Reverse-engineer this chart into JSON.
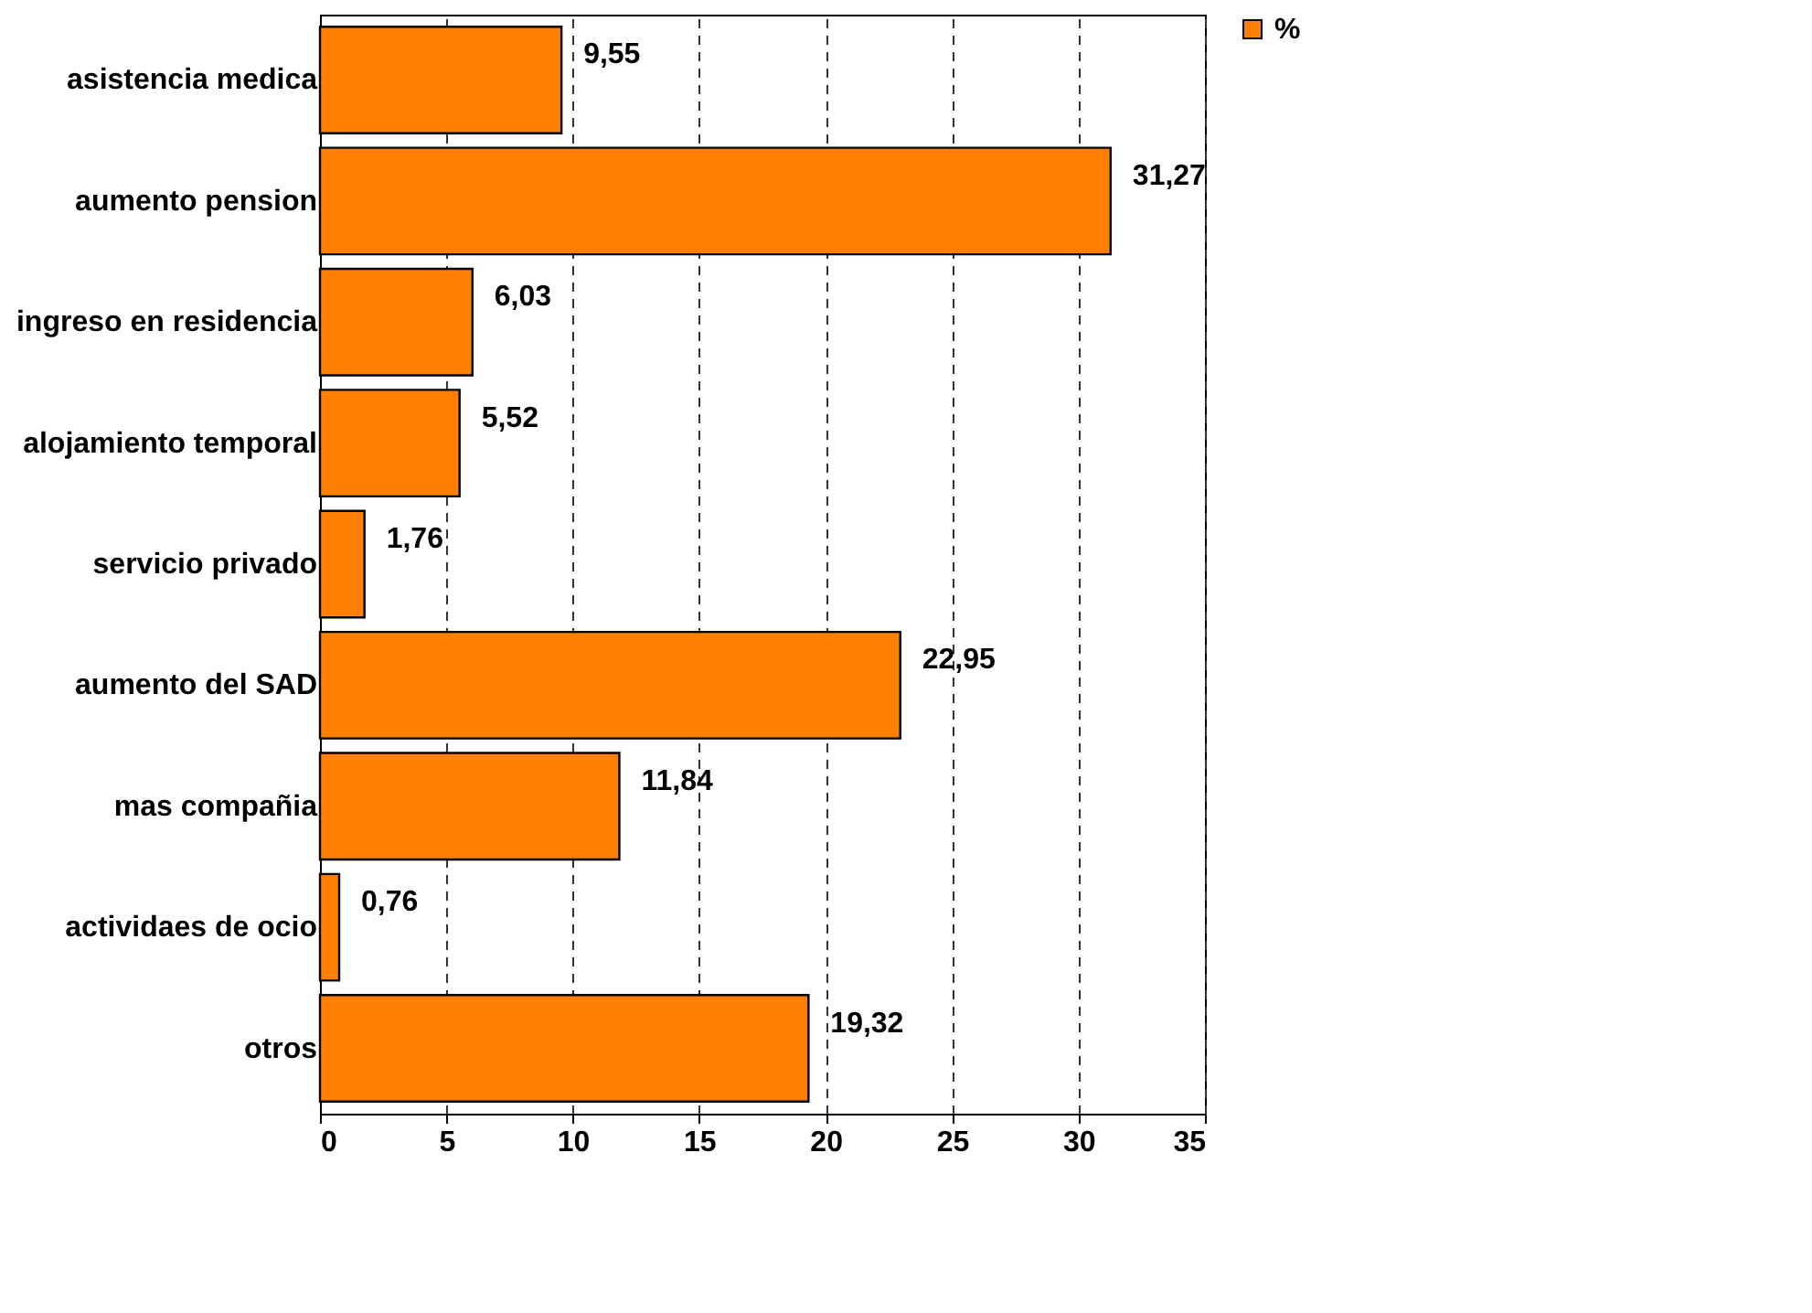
{
  "chart_data": {
    "type": "bar",
    "orientation": "horizontal",
    "categories": [
      "asistencia medica",
      "aumento pension",
      "ingreso en residencia",
      "alojamiento temporal",
      "servicio privado",
      "aumento del SAD",
      "mas compañia",
      "actividaes de ocio",
      "otros"
    ],
    "series": [
      {
        "name": "%",
        "color": "#ff8000",
        "values": [
          9.55,
          31.27,
          6.03,
          5.52,
          1.76,
          22.95,
          11.84,
          0.76,
          19.32
        ],
        "value_labels": [
          "9,55",
          "31,27",
          "6,03",
          "5,52",
          "1,76",
          "22,95",
          "11,84",
          "0,76",
          "19,32"
        ]
      }
    ],
    "xlim": [
      0,
      35
    ],
    "xticks": [
      0,
      5,
      10,
      15,
      20,
      25,
      30,
      35
    ],
    "grid": "x",
    "line_style": "dashed",
    "legend": "right"
  }
}
